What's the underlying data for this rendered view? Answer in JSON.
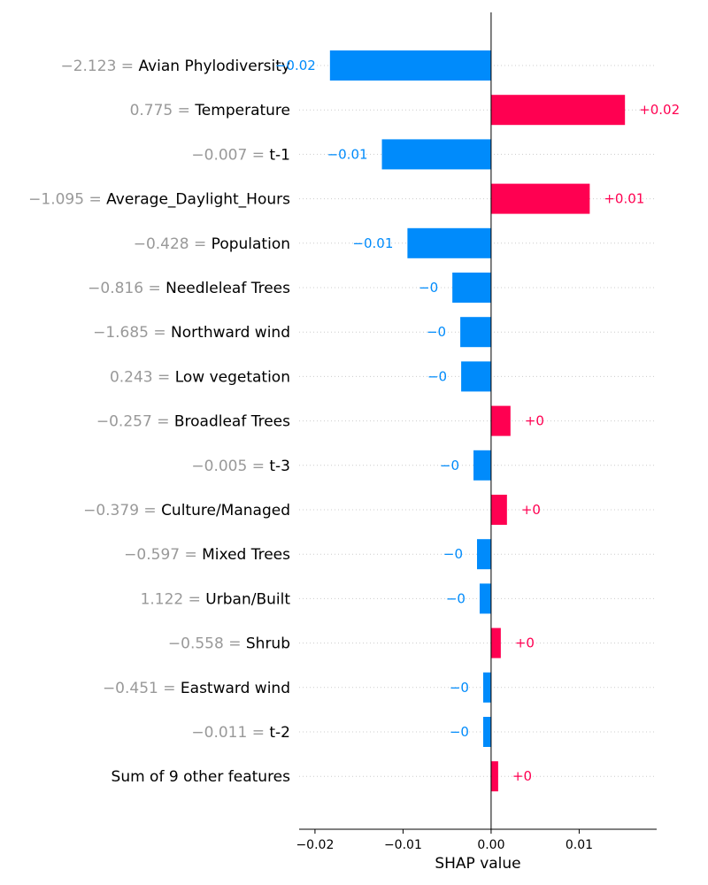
{
  "chart_data": {
    "type": "bar",
    "orientation": "horizontal",
    "xlabel": "SHAP value",
    "xlim": [
      -0.0218,
      0.0188
    ],
    "x_ticks": [
      {
        "value": -0.02,
        "label": "−0.02"
      },
      {
        "value": -0.01,
        "label": "−0.01"
      },
      {
        "value": 0.0,
        "label": "0.00"
      },
      {
        "value": 0.01,
        "label": "0.01"
      }
    ],
    "grid": true,
    "colors": {
      "positive": "#ff0051",
      "negative": "#008bfb"
    },
    "features": [
      {
        "value_label": "−2.123 = ",
        "name": "Avian Phylodiversity",
        "shap": -0.0183,
        "shap_label": "−0.02"
      },
      {
        "value_label": "0.775 = ",
        "name": "Temperature",
        "shap": 0.0152,
        "shap_label": "+0.02"
      },
      {
        "value_label": "−0.007 = ",
        "name": "t-1",
        "shap": -0.0124,
        "shap_label": "−0.01"
      },
      {
        "value_label": "−1.095 = ",
        "name": "Average_Daylight_Hours",
        "shap": 0.0112,
        "shap_label": "+0.01"
      },
      {
        "value_label": "−0.428 = ",
        "name": "Population",
        "shap": -0.0095,
        "shap_label": "−0.01"
      },
      {
        "value_label": "−0.816 = ",
        "name": "Needleleaf Trees",
        "shap": -0.0044,
        "shap_label": "−0"
      },
      {
        "value_label": "−1.685 = ",
        "name": "Northward wind",
        "shap": -0.0035,
        "shap_label": "−0"
      },
      {
        "value_label": "0.243 = ",
        "name": "Low vegetation",
        "shap": -0.0034,
        "shap_label": "−0"
      },
      {
        "value_label": "−0.257 = ",
        "name": "Broadleaf Trees",
        "shap": 0.0022,
        "shap_label": "+0"
      },
      {
        "value_label": "−0.005 = ",
        "name": "t-3",
        "shap": -0.002,
        "shap_label": "−0"
      },
      {
        "value_label": "−0.379 = ",
        "name": "Culture/Managed",
        "shap": 0.0018,
        "shap_label": "+0"
      },
      {
        "value_label": "−0.597 = ",
        "name": "Mixed Trees",
        "shap": -0.0016,
        "shap_label": "−0"
      },
      {
        "value_label": "1.122 = ",
        "name": "Urban/Built",
        "shap": -0.0013,
        "shap_label": "−0"
      },
      {
        "value_label": "−0.558 = ",
        "name": "Shrub",
        "shap": 0.0011,
        "shap_label": "+0"
      },
      {
        "value_label": "−0.451 = ",
        "name": "Eastward wind",
        "shap": -0.0009,
        "shap_label": "−0"
      },
      {
        "value_label": "−0.011 = ",
        "name": "t-2",
        "shap": -0.0009,
        "shap_label": "−0"
      },
      {
        "value_label": "",
        "name": "Sum of 9 other features",
        "shap": 0.0008,
        "shap_label": "+0"
      }
    ]
  }
}
